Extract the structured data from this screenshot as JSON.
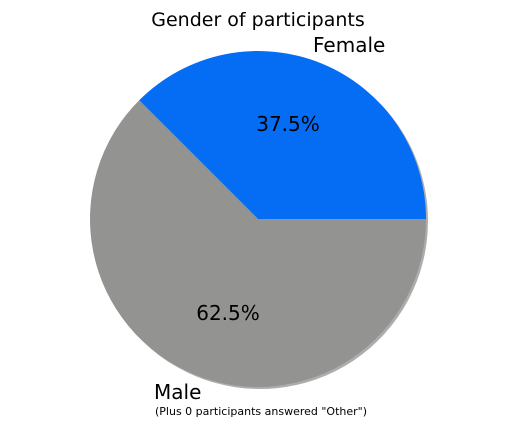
{
  "chart_data": {
    "type": "pie",
    "title": "Gender of participants",
    "categories": [
      "Female",
      "Male"
    ],
    "values": [
      37.5,
      62.5
    ],
    "colors": [
      "#056df3",
      "#939491"
    ],
    "percent_labels": [
      "37.5%",
      "62.5%"
    ],
    "start_angle_deg": 135,
    "counterclock": false,
    "shadow": true,
    "note": "(Plus 0 participants answered \"Other\")"
  }
}
